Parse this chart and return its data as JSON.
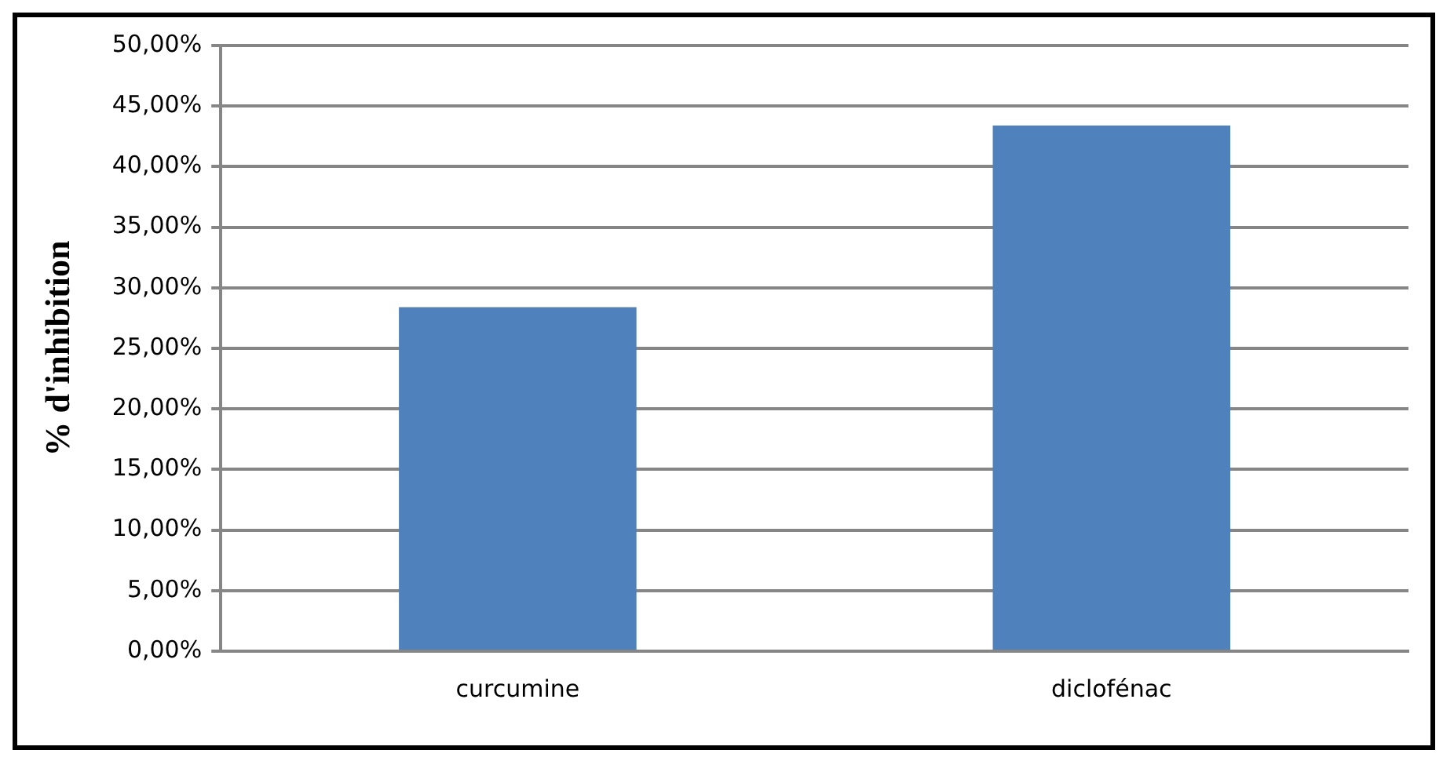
{
  "chart_data": {
    "type": "bar",
    "ylabel": "% d'inhibition",
    "categories": [
      "curcumine",
      "diclofénac"
    ],
    "values": [
      28.4,
      43.4
    ],
    "color": "#4f81bd",
    "ylim": [
      0,
      50
    ],
    "yticks": [
      {
        "value": 0,
        "label": "0,00%"
      },
      {
        "value": 5,
        "label": "5,00%"
      },
      {
        "value": 10,
        "label": "10,00%"
      },
      {
        "value": 15,
        "label": "15,00%"
      },
      {
        "value": 20,
        "label": "20,00%"
      },
      {
        "value": 25,
        "label": "25,00%"
      },
      {
        "value": 30,
        "label": "30,00%"
      },
      {
        "value": 35,
        "label": "35,00%"
      },
      {
        "value": 40,
        "label": "40,00%"
      },
      {
        "value": 45,
        "label": "45,00%"
      },
      {
        "value": 50,
        "label": "50,00%"
      }
    ],
    "grid": "y",
    "legend": false
  }
}
